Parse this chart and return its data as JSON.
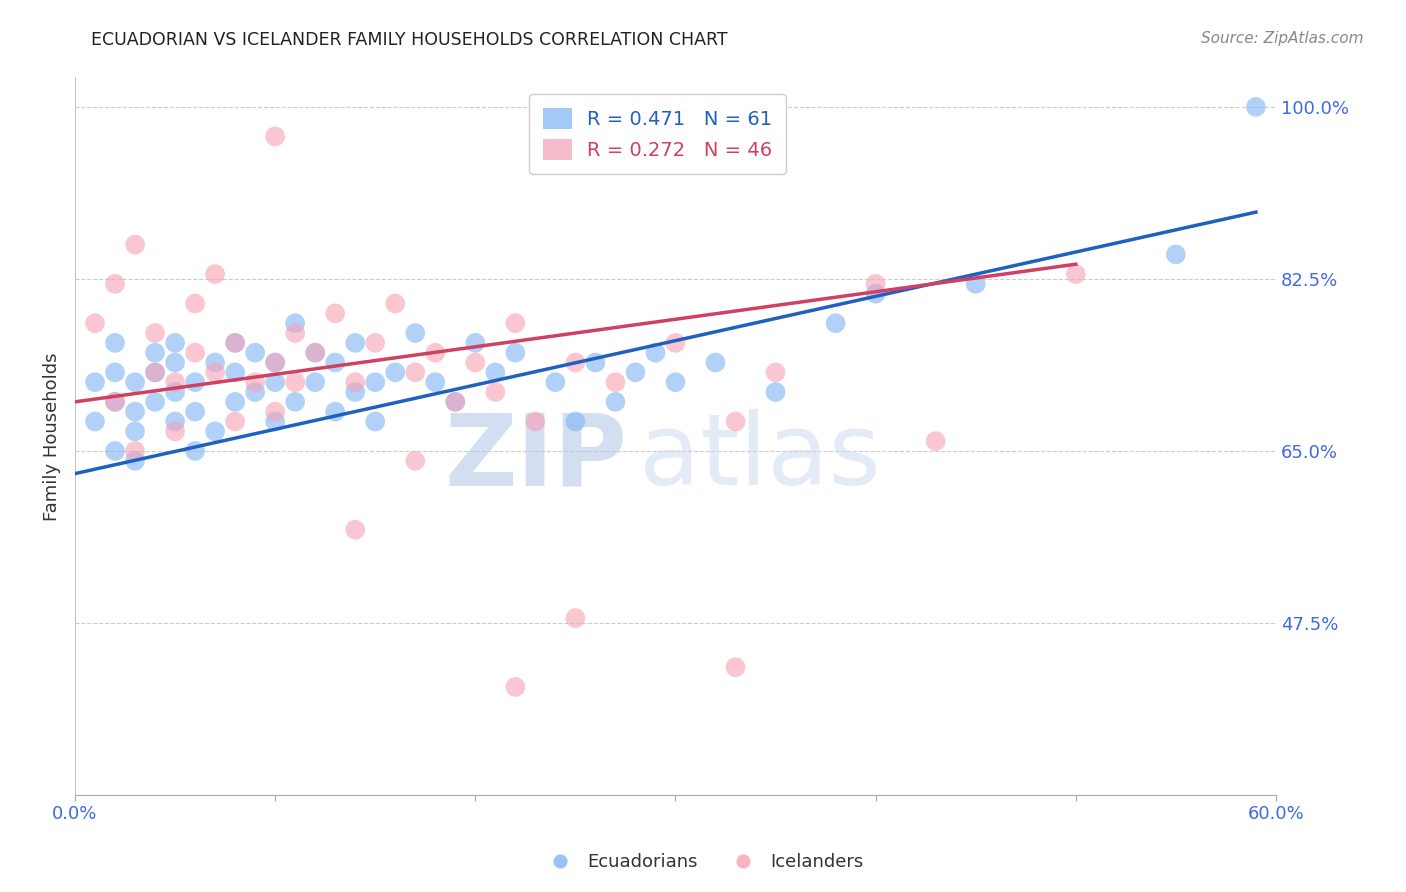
{
  "title": "ECUADORIAN VS ICELANDER FAMILY HOUSEHOLDS CORRELATION CHART",
  "source": "Source: ZipAtlas.com",
  "ylabel": "Family Households",
  "watermark": "ZIPatlas",
  "x_min": 0.0,
  "x_max": 0.6,
  "y_min": 0.3,
  "y_max": 1.03,
  "y_ticks": [
    0.475,
    0.65,
    0.825,
    1.0
  ],
  "y_tick_labels": [
    "47.5%",
    "65.0%",
    "82.5%",
    "100.0%"
  ],
  "x_ticks": [
    0.0,
    0.1,
    0.2,
    0.3,
    0.4,
    0.5,
    0.6
  ],
  "x_tick_labels": [
    "0.0%",
    "",
    "",
    "",
    "",
    "",
    "60.0%"
  ],
  "blue_R": 0.471,
  "blue_N": 61,
  "pink_R": 0.272,
  "pink_N": 46,
  "blue_color": "#7EB3F5",
  "pink_color": "#F5A0B5",
  "blue_line_color": "#2060C0",
  "pink_line_color": "#D04060",
  "axis_color": "#4169E1",
  "grid_color": "#cccccc",
  "blue_scatter_x": [
    0.01,
    0.01,
    0.02,
    0.02,
    0.02,
    0.02,
    0.03,
    0.03,
    0.03,
    0.03,
    0.04,
    0.04,
    0.04,
    0.05,
    0.05,
    0.05,
    0.05,
    0.06,
    0.06,
    0.06,
    0.07,
    0.07,
    0.08,
    0.08,
    0.08,
    0.09,
    0.09,
    0.1,
    0.1,
    0.1,
    0.11,
    0.11,
    0.12,
    0.12,
    0.13,
    0.13,
    0.14,
    0.14,
    0.15,
    0.15,
    0.16,
    0.17,
    0.18,
    0.19,
    0.2,
    0.21,
    0.22,
    0.24,
    0.25,
    0.26,
    0.27,
    0.28,
    0.29,
    0.3,
    0.32,
    0.35,
    0.38,
    0.4,
    0.45,
    0.55,
    0.59
  ],
  "blue_scatter_y": [
    0.68,
    0.72,
    0.7,
    0.65,
    0.73,
    0.76,
    0.67,
    0.69,
    0.72,
    0.64,
    0.7,
    0.75,
    0.73,
    0.68,
    0.71,
    0.74,
    0.76,
    0.65,
    0.69,
    0.72,
    0.74,
    0.67,
    0.7,
    0.73,
    0.76,
    0.71,
    0.75,
    0.68,
    0.72,
    0.74,
    0.7,
    0.78,
    0.72,
    0.75,
    0.69,
    0.74,
    0.71,
    0.76,
    0.68,
    0.72,
    0.73,
    0.77,
    0.72,
    0.7,
    0.76,
    0.73,
    0.75,
    0.72,
    0.68,
    0.74,
    0.7,
    0.73,
    0.75,
    0.72,
    0.74,
    0.71,
    0.78,
    0.81,
    0.82,
    0.85,
    1.0
  ],
  "pink_scatter_x": [
    0.01,
    0.02,
    0.02,
    0.03,
    0.03,
    0.04,
    0.04,
    0.05,
    0.05,
    0.06,
    0.06,
    0.07,
    0.07,
    0.08,
    0.08,
    0.09,
    0.1,
    0.1,
    0.11,
    0.11,
    0.12,
    0.13,
    0.14,
    0.15,
    0.16,
    0.17,
    0.18,
    0.19,
    0.2,
    0.21,
    0.22,
    0.23,
    0.25,
    0.27,
    0.3,
    0.33,
    0.35,
    0.4,
    0.43,
    0.5,
    0.1,
    0.14,
    0.17,
    0.22,
    0.25,
    0.33
  ],
  "pink_scatter_y": [
    0.78,
    0.82,
    0.7,
    0.86,
    0.65,
    0.73,
    0.77,
    0.72,
    0.67,
    0.75,
    0.8,
    0.73,
    0.83,
    0.68,
    0.76,
    0.72,
    0.74,
    0.69,
    0.77,
    0.72,
    0.75,
    0.79,
    0.72,
    0.76,
    0.8,
    0.73,
    0.75,
    0.7,
    0.74,
    0.71,
    0.78,
    0.68,
    0.74,
    0.72,
    0.76,
    0.68,
    0.73,
    0.82,
    0.66,
    0.83,
    0.97,
    0.57,
    0.64,
    0.41,
    0.48,
    0.43
  ],
  "blue_line_x": [
    0.0,
    0.59
  ],
  "blue_line_y": [
    0.627,
    0.893
  ],
  "pink_line_x": [
    0.0,
    0.5
  ],
  "pink_line_y": [
    0.7,
    0.84
  ]
}
